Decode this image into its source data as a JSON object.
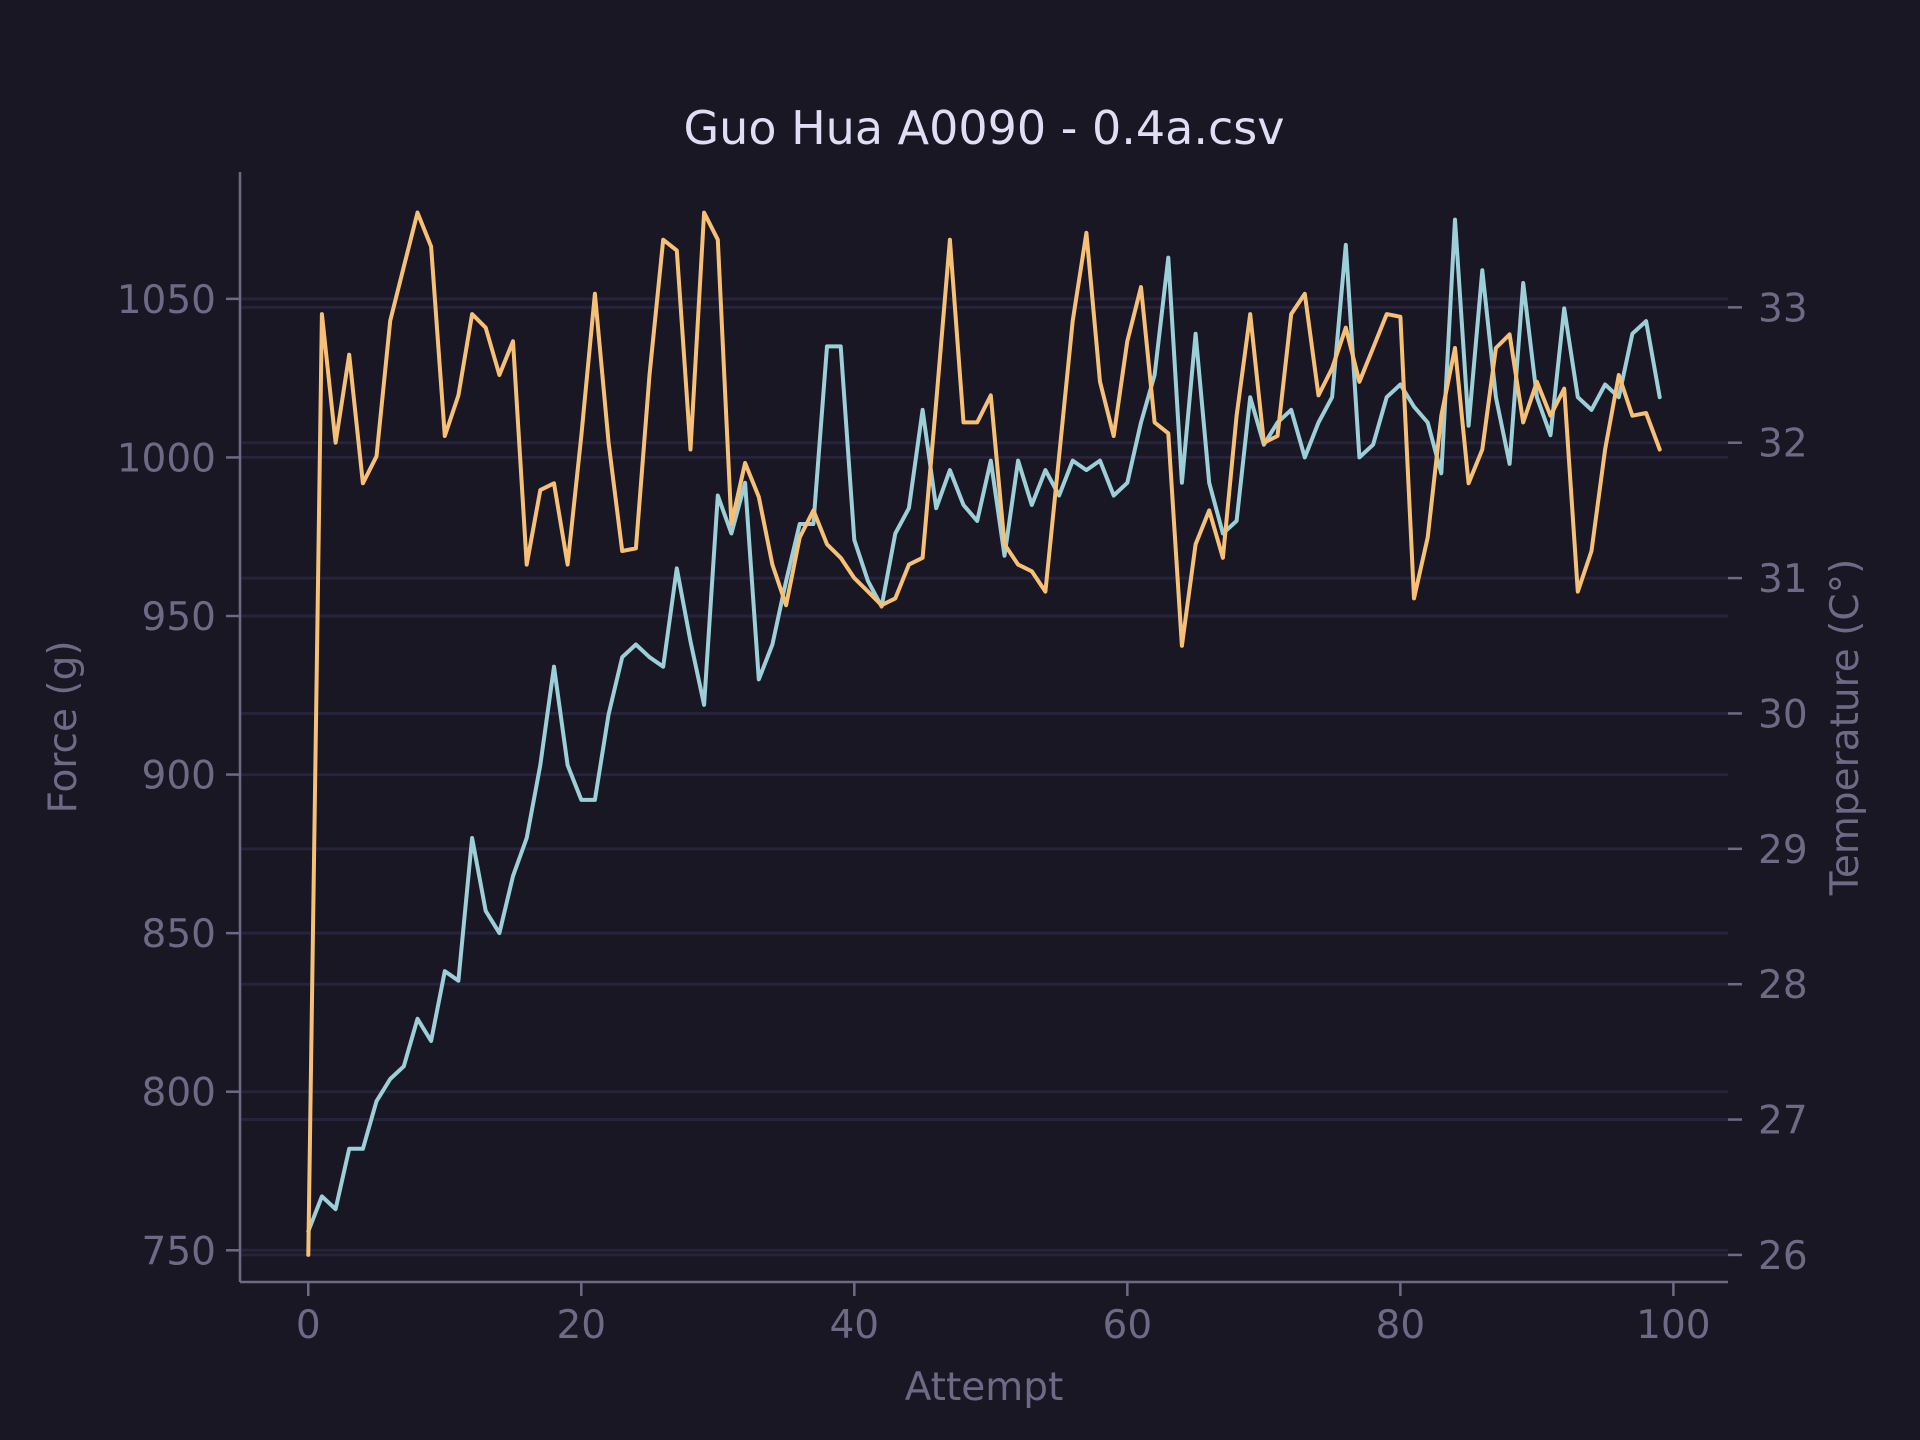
{
  "chart_data": {
    "type": "line",
    "title": "Guo Hua A0090 - 0.4a.csv",
    "xlabel": "Attempt",
    "ylabel_left": "Force (g)",
    "ylabel_right": "Temperature (C°)",
    "xlim": [
      -5,
      104
    ],
    "ylim_left": [
      740,
      1090
    ],
    "ylim_right": [
      25.8,
      34.0
    ],
    "xticks": [
      0,
      20,
      40,
      60,
      80,
      100
    ],
    "yticks_left": [
      750,
      800,
      850,
      900,
      950,
      1000,
      1050
    ],
    "yticks_right": [
      26,
      27,
      28,
      29,
      30,
      31,
      32,
      33
    ],
    "grid": true,
    "x": [
      0,
      1,
      2,
      3,
      4,
      5,
      6,
      7,
      8,
      9,
      10,
      11,
      12,
      13,
      14,
      15,
      16,
      17,
      18,
      19,
      20,
      21,
      22,
      23,
      24,
      25,
      26,
      27,
      28,
      29,
      30,
      31,
      32,
      33,
      34,
      35,
      36,
      37,
      38,
      39,
      40,
      41,
      42,
      43,
      44,
      45,
      46,
      47,
      48,
      49,
      50,
      51,
      52,
      53,
      54,
      55,
      56,
      57,
      58,
      59,
      60,
      61,
      62,
      63,
      64,
      65,
      66,
      67,
      68,
      69,
      70,
      71,
      72,
      73,
      74,
      75,
      76,
      77,
      78,
      79,
      80,
      81,
      82,
      83,
      84,
      85,
      86,
      87,
      88,
      89,
      90,
      91,
      92,
      93,
      94,
      95,
      96,
      97,
      98,
      99
    ],
    "series": [
      {
        "axis": "left",
        "color": "#9ccfd8",
        "values": [
          756,
          767,
          763,
          782,
          782,
          797,
          804,
          808,
          823,
          816,
          838,
          835,
          880,
          857,
          850,
          868,
          880,
          903,
          934,
          903,
          892,
          892,
          919,
          937,
          941,
          937,
          934,
          965,
          942,
          922,
          988,
          976,
          992,
          930,
          941,
          961,
          979,
          979,
          1035,
          1035,
          974,
          961,
          953,
          976,
          984,
          1015,
          984,
          996,
          985,
          980,
          999,
          969,
          999,
          985,
          996,
          988,
          999,
          996,
          999,
          988,
          992,
          1011,
          1026,
          1063,
          992,
          1039,
          992,
          976,
          980,
          1019,
          1004,
          1011,
          1015,
          1000,
          1011,
          1019,
          1067,
          1000,
          1004,
          1019,
          1023,
          1016,
          1011,
          995,
          1075,
          1010,
          1059,
          1019,
          998,
          1055,
          1019,
          1007,
          1047,
          1019,
          1015,
          1023,
          1019,
          1039,
          1043,
          1019
        ]
      },
      {
        "axis": "right",
        "color": "#f6c177",
        "values": [
          26.0,
          32.95,
          32.0,
          32.65,
          31.7,
          31.9,
          32.9,
          33.3,
          33.7,
          33.45,
          32.05,
          32.35,
          32.95,
          32.85,
          32.5,
          32.75,
          31.1,
          31.65,
          31.7,
          31.1,
          32.05,
          33.1,
          32.0,
          31.2,
          31.22,
          32.5,
          33.5,
          33.42,
          31.95,
          33.7,
          33.5,
          31.4,
          31.85,
          31.6,
          31.1,
          30.8,
          31.3,
          31.5,
          31.25,
          31.15,
          31.0,
          30.9,
          30.8,
          30.85,
          31.1,
          31.15,
          32.3,
          33.5,
          32.15,
          32.15,
          32.35,
          31.25,
          31.1,
          31.05,
          30.9,
          31.9,
          32.9,
          33.55,
          32.45,
          32.05,
          32.75,
          33.15,
          32.15,
          32.07,
          30.5,
          31.25,
          31.5,
          31.15,
          32.2,
          32.95,
          32.0,
          32.05,
          32.95,
          33.1,
          32.35,
          32.55,
          32.85,
          32.45,
          32.7,
          32.95,
          32.93,
          30.85,
          31.3,
          32.2,
          32.7,
          31.7,
          31.95,
          32.7,
          32.8,
          32.15,
          32.45,
          32.2,
          32.4,
          30.9,
          31.2,
          31.95,
          32.5,
          32.2,
          32.22,
          31.95
        ]
      }
    ]
  }
}
